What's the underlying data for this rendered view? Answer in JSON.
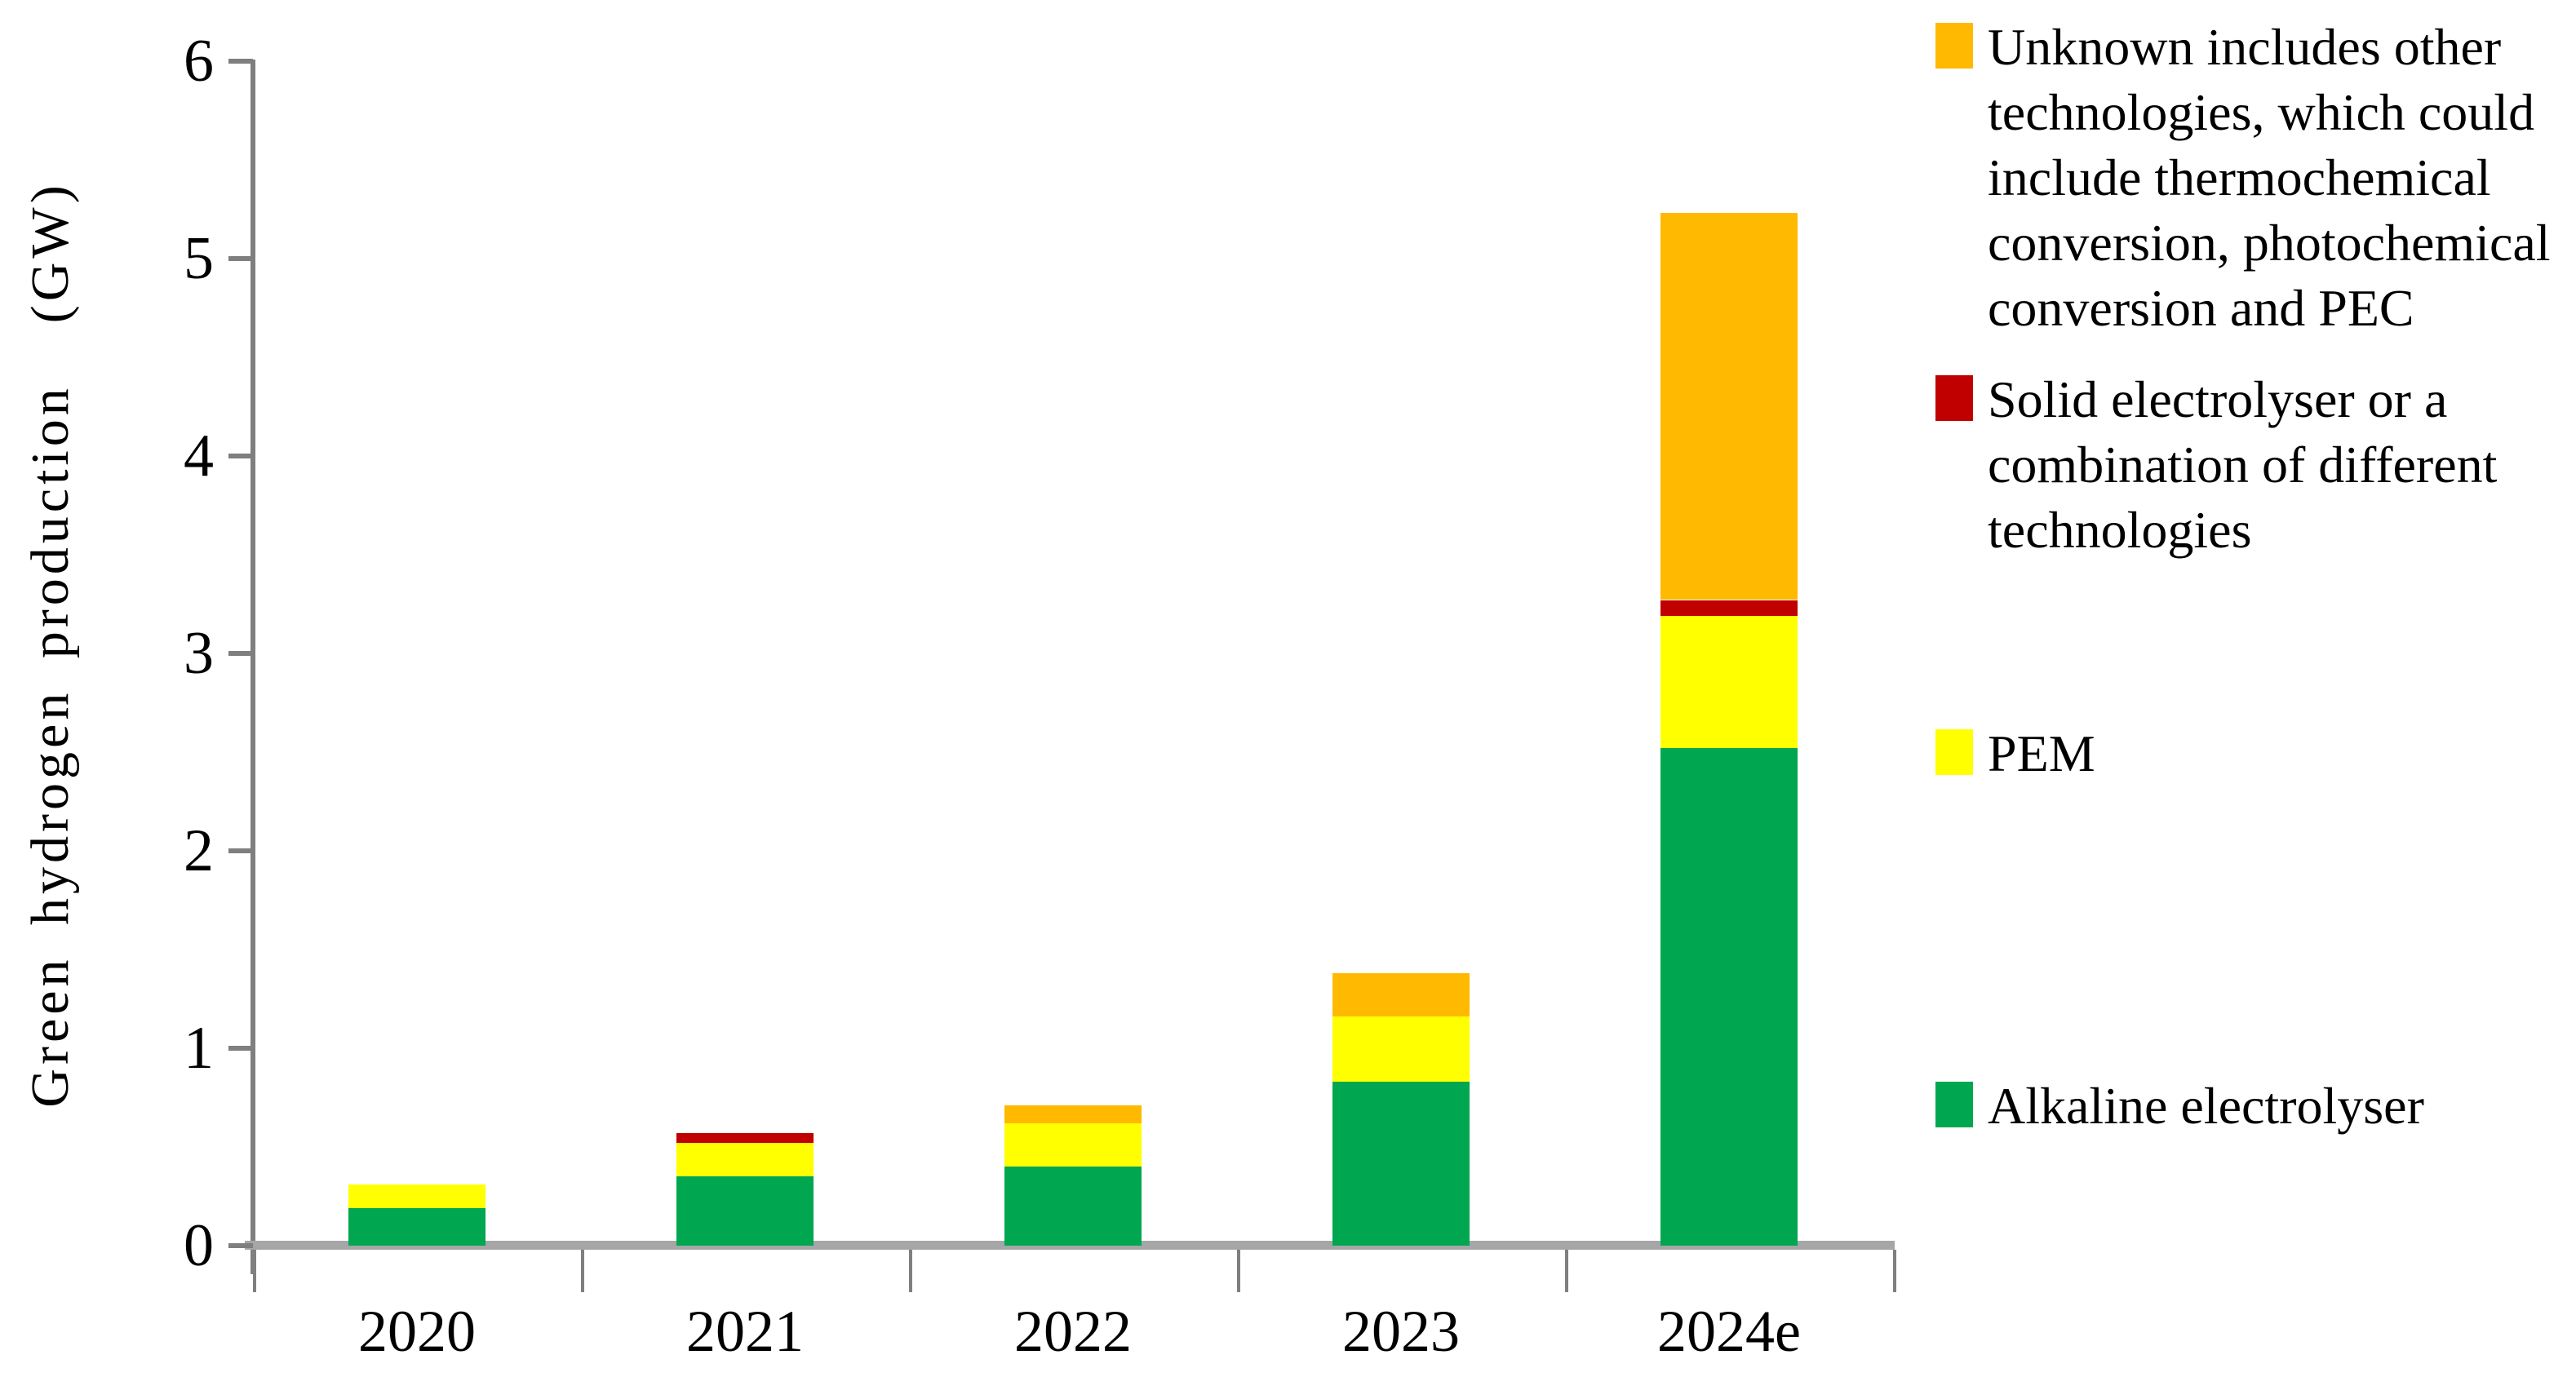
{
  "chart_data": {
    "type": "bar",
    "stacked": true,
    "title": "",
    "xlabel": "",
    "ylabel": "Green hydrogen production  (GW)",
    "ylim": [
      0,
      6
    ],
    "yticks": [
      0,
      1,
      2,
      3,
      4,
      5,
      6
    ],
    "grid": false,
    "legend_position": "right",
    "categories": [
      "2020",
      "2021",
      "2022",
      "2023",
      "2024e"
    ],
    "series": [
      {
        "name": "Alkaline electrolyser",
        "color": "#00a750",
        "values": [
          0.19,
          0.35,
          0.4,
          0.83,
          2.52
        ]
      },
      {
        "name": "PEM",
        "color": "#ffff00",
        "values": [
          0.12,
          0.17,
          0.22,
          0.33,
          0.67
        ]
      },
      {
        "name": "Solid electrolyser or a combination of different technologies",
        "color": "#c00000",
        "values": [
          0,
          0.05,
          0,
          0,
          0.08
        ]
      },
      {
        "name": "Unknown includes other technologies, which could include thermochemical conversion, photochemical conversion and PEC",
        "color": "#ffb900",
        "values": [
          0,
          0,
          0.09,
          0.22,
          1.96
        ]
      }
    ],
    "totals": [
      0.31,
      0.57,
      0.71,
      1.38,
      5.23
    ]
  },
  "axes": {
    "y_title": "Green hydrogen production  (GW)",
    "y_tick_labels": [
      "0",
      "1",
      "2",
      "3",
      "4",
      "5",
      "6"
    ],
    "x_tick_labels": [
      "2020",
      "2021",
      "2022",
      "2023",
      "2024e"
    ]
  },
  "legend": {
    "items": [
      {
        "color": "#ffb900",
        "lines": [
          "Unknown includes other",
          "technologies, which could",
          "include thermochemical",
          "conversion, photochemical",
          "conversion and PEC"
        ]
      },
      {
        "color": "#c00000",
        "lines": [
          "Solid electrolyser or a",
          "combination of different",
          "technologies"
        ]
      },
      {
        "color": "#ffff00",
        "lines": [
          "PEM"
        ]
      },
      {
        "color": "#00a750",
        "lines": [
          "Alkaline electrolyser"
        ]
      }
    ]
  }
}
